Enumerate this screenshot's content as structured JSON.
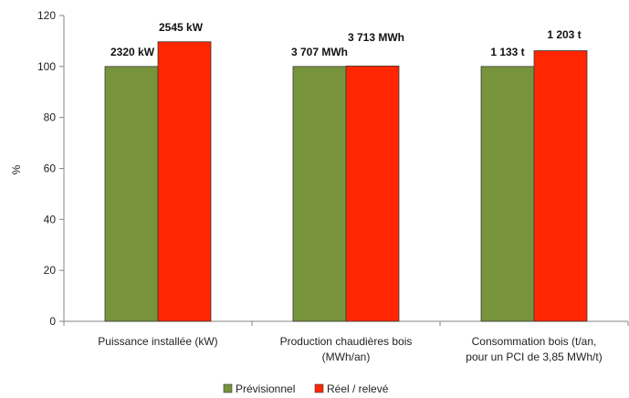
{
  "chart_data": {
    "type": "bar",
    "title": "",
    "xlabel": "",
    "ylabel": "%",
    "ylim": [
      0,
      120
    ],
    "yticks": [
      0,
      20,
      40,
      60,
      80,
      100,
      120
    ],
    "grid": false,
    "legend_position": "bottom",
    "categories": [
      [
        "Puissance installée (kW)"
      ],
      [
        "Production chaudières bois",
        "(MWh/an)"
      ],
      [
        "Consommation bois (t/an,",
        "pour un PCI de 3,85 MWh/t)"
      ]
    ],
    "series": [
      {
        "name": "Prévisionnel",
        "color": "#77933c",
        "values": [
          100,
          100,
          100
        ],
        "labels": [
          "2320 kW",
          "3 707 MWh",
          "1 133 t"
        ]
      },
      {
        "name": "Réel / relevé",
        "color": "#ff2600",
        "values": [
          109.7,
          100.2,
          106.2
        ],
        "labels": [
          "2545 kW",
          "3 713 MWh",
          "1 203 t"
        ]
      }
    ]
  }
}
